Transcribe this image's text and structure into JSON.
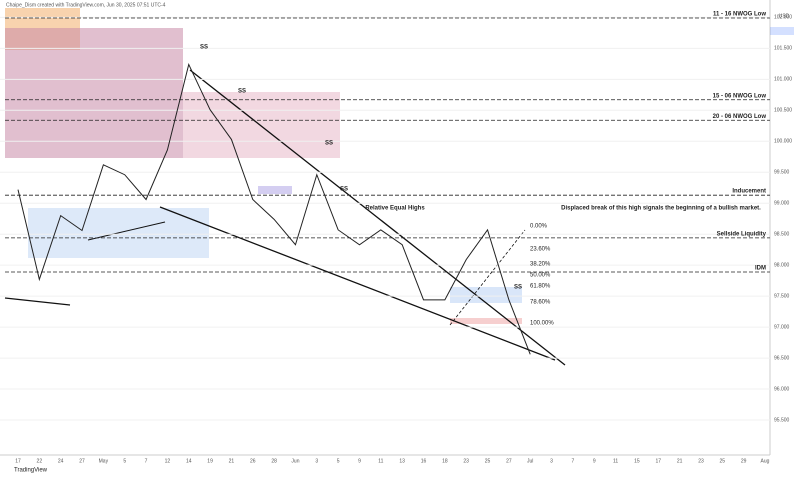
{
  "chart_data": {
    "type": "line",
    "title": "Chaipe_Dism created with TradingView.com, Jun 30, 2025 07:51 UTC-4",
    "currency": "USD",
    "brand": "TradingView",
    "categories": [
      "17",
      "22",
      "24",
      "27",
      "May",
      "5",
      "7",
      "12",
      "14",
      "19",
      "21",
      "26",
      "28",
      "Jun",
      "3",
      "5",
      "9",
      "11",
      "13",
      "16",
      "18",
      "23",
      "25",
      "27",
      "Jul",
      "3",
      "7",
      "9",
      "11",
      "15",
      "17",
      "21",
      "23",
      "25",
      "29",
      "Aug"
    ],
    "values": [
      99.22,
      97.77,
      98.8,
      98.56,
      99.62,
      99.46,
      99.06,
      99.86,
      101.24,
      100.51,
      100.03,
      99.06,
      98.74,
      98.33,
      99.46,
      98.57,
      98.33,
      98.57,
      98.33,
      97.44,
      97.44,
      98.09,
      98.57,
      97.44,
      96.56,
      null,
      null,
      null,
      null,
      null,
      null,
      null,
      null,
      null,
      null,
      null
    ],
    "color": "#222222",
    "ylim": [
      95.0,
      102.2
    ],
    "yticks": [
      {
        "value": 95.5,
        "label": "95.500"
      },
      {
        "value": 96,
        "label": "96.000"
      },
      {
        "value": 96.5,
        "label": "96.500"
      },
      {
        "value": 97,
        "label": "97.000"
      },
      {
        "value": 97.5,
        "label": "97.500"
      },
      {
        "value": 98,
        "label": "98.000"
      },
      {
        "value": 98.5,
        "label": "98.500"
      },
      {
        "value": 99,
        "label": "99.000"
      },
      {
        "value": 99.5,
        "label": "99.500"
      },
      {
        "value": 100,
        "label": "100.000"
      },
      {
        "value": 100.5,
        "label": "100.500"
      },
      {
        "value": 101,
        "label": "101.000"
      },
      {
        "value": 101.5,
        "label": "101.500"
      },
      {
        "value": 102,
        "label": "102.000"
      }
    ],
    "grid": true,
    "levels": [
      {
        "label": "11 - 16 NWOG Low",
        "value": 101.99
      },
      {
        "label": "15 - 06 NWOG Low",
        "value": 100.67
      },
      {
        "label": "20 - 06 NWOG Low",
        "value": 100.34
      },
      {
        "label": "Inducement",
        "value": 99.13
      },
      {
        "label": "Sellside Liquidity",
        "value": 98.44
      },
      {
        "label": "IDM",
        "value": 97.89
      }
    ],
    "annotations": [
      "SS",
      "SS",
      "SS",
      "SS",
      "SS",
      "Relative Equal Highs",
      "Displaced break of this high signals the beginning of a bullish market.",
      "0.00%",
      "23.60%",
      "38.20%",
      "50.00%",
      "61.80%",
      "78.60%",
      "100.00%"
    ]
  }
}
